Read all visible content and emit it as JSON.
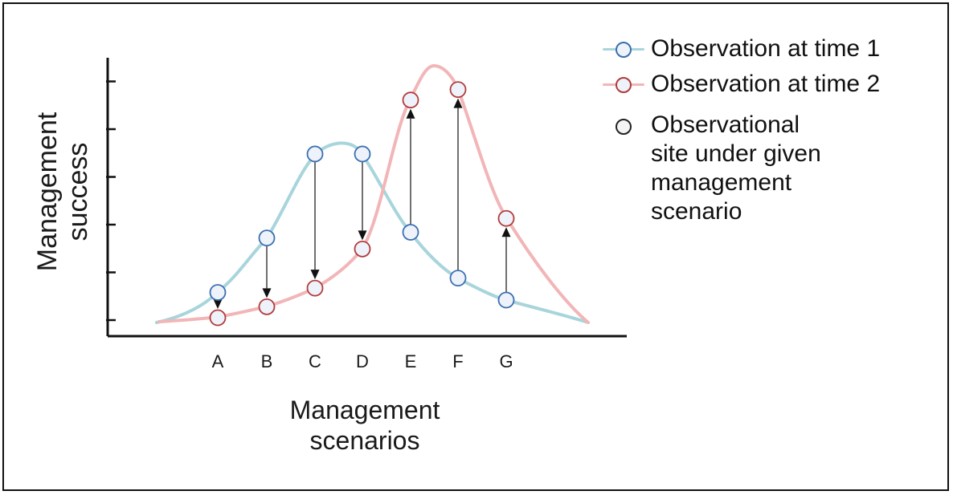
{
  "axes": {
    "y_label_line1": "Management",
    "y_label_line2": "success",
    "x_label_line1": "Management",
    "x_label_line2": "scenarios"
  },
  "legend": {
    "time1": "Observation at time 1",
    "time2": "Observation at time 2",
    "site": "Observational site under given management scenario"
  },
  "colors": {
    "time1_line": "#a8d5dc",
    "time1_marker_stroke": "#3a6fb0",
    "time2_line": "#f2b5b8",
    "time2_marker_stroke": "#b23a3a",
    "marker_fill": "#eef2fa",
    "axis": "#111111",
    "arrow": "#111111",
    "site_marker_stroke": "#222222"
  },
  "scenarios": [
    "A",
    "B",
    "C",
    "D",
    "E",
    "F",
    "G"
  ],
  "y_tick_count": 6,
  "observations": {
    "time1": [
      0.58,
      1.72,
      3.48,
      3.48,
      1.84,
      0.88,
      0.42
    ],
    "time2": [
      0.05,
      0.28,
      0.67,
      1.49,
      4.61,
      4.83,
      2.13
    ]
  },
  "icons": {
    "site_marker": "circle-outline-icon",
    "arrow": "arrow-up-icon"
  }
}
